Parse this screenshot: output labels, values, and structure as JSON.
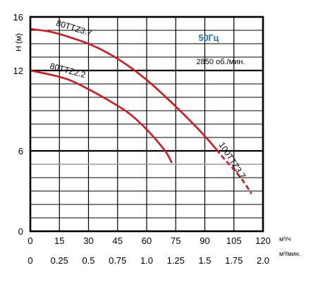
{
  "chart_data": {
    "type": "line",
    "ylabel": "H (м)",
    "x_units": [
      "м³/ч",
      "м³/мин."
    ],
    "x_ticks_m3h": [
      "0",
      "15",
      "30",
      "45",
      "60",
      "75",
      "90",
      "105",
      "120"
    ],
    "x_ticks_m3min": [
      "0",
      "0.25",
      "0.5",
      "0.75",
      "1.0",
      "1.25",
      "1.5",
      "1.75",
      "2.0"
    ],
    "xlim": [
      0,
      120
    ],
    "ylim": [
      0,
      16
    ],
    "y_ticks": [
      "0",
      "6",
      "12",
      "16"
    ],
    "grid": true,
    "reference_line_y": 5,
    "info": {
      "frequency": "50Гц",
      "speed": "2850 об./мин."
    },
    "colors": {
      "curve": "#d8141c",
      "frequency": "#1f6fb2",
      "grid_major": "#000000",
      "grid_minor": "#9a9a9a"
    },
    "series": [
      {
        "name": "80TTZ3.7",
        "x": [
          0,
          10,
          20,
          30,
          40,
          50,
          60,
          70,
          80,
          90,
          96
        ],
        "y": [
          15.1,
          14.9,
          14.5,
          14.0,
          13.3,
          12.4,
          11.3,
          10.0,
          8.6,
          7.1,
          6.1
        ]
      },
      {
        "name": "100TTZ3.7",
        "style": "dashed",
        "x": [
          96,
          100,
          105,
          110,
          114
        ],
        "y": [
          6.1,
          5.4,
          4.6,
          3.7,
          2.8
        ]
      },
      {
        "name": "80TTZ2.2",
        "x": [
          0,
          10,
          20,
          30,
          40,
          50,
          55,
          60,
          65,
          70,
          73
        ],
        "y": [
          12.0,
          11.7,
          11.3,
          10.6,
          9.8,
          8.9,
          8.3,
          7.6,
          6.8,
          5.9,
          5.1
        ]
      }
    ]
  }
}
